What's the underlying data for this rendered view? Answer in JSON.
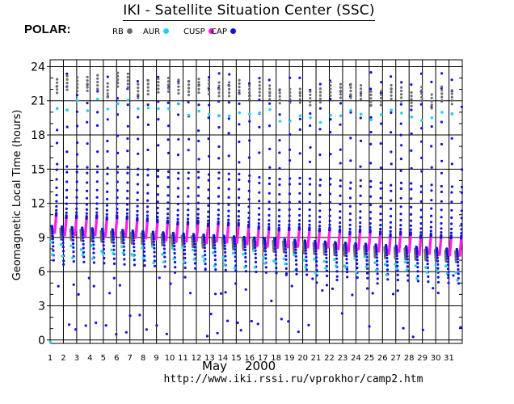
{
  "header": {
    "title": "IKI - Satellite Situation Center (SSC)",
    "satellite": "POLAR:"
  },
  "legend": [
    {
      "label": "RB",
      "color": "#6e6e6e"
    },
    {
      "label": "AUR",
      "color": "#22d3e6"
    },
    {
      "label": "CUSP",
      "color": "#ff1fe0"
    },
    {
      "label": "CAP",
      "color": "#1010e0"
    }
  ],
  "footer": {
    "month": "May",
    "year": "2000",
    "url": "http://www.iki.rssi.ru/vprokhor/camp2.htm"
  },
  "chart_data": {
    "type": "scatter",
    "ylabel": "Geomagnetic Local Time (hours)",
    "xlabel": "",
    "x_tick_labels": [
      "1",
      "2",
      "3",
      "4",
      "5",
      "6",
      "7",
      "8",
      "9",
      "10",
      "11",
      "12",
      "13",
      "14",
      "15",
      "16",
      "17",
      "18",
      "19",
      "20",
      "21",
      "22",
      "23",
      "24",
      "25",
      "26",
      "27",
      "28",
      "29",
      "30",
      "31"
    ],
    "y_ticks": [
      0,
      3,
      6,
      9,
      12,
      15,
      18,
      21,
      24
    ],
    "xlim": [
      1,
      32
    ],
    "ylim": [
      -0.3,
      24.6
    ],
    "grid": true,
    "orbit_period_days": 0.7617,
    "first_orbit_start_day": 1.05,
    "series_colors": {
      "RB": "#6e6e6e",
      "AUR": "#22d3e6",
      "CUSP": "#ff1fe0",
      "CAP": "#1010e0"
    }
  }
}
